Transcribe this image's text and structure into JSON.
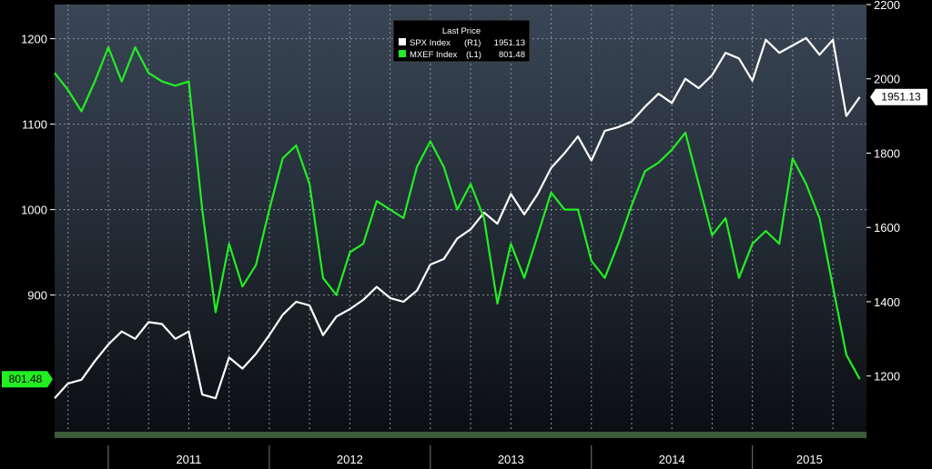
{
  "chart_data": {
    "type": "line",
    "title": "",
    "legend": {
      "title": "Last Price",
      "placement": "top-center",
      "entries": [
        {
          "name": "SPX Index",
          "axis": "(R1)",
          "value": "1951.13",
          "color": "#ffffff"
        },
        {
          "name": "MXEF Index",
          "axis": "(L1)",
          "value": "801.48",
          "color": "#22ee22"
        }
      ]
    },
    "x_axis": {
      "labels": [
        "2011",
        "2012",
        "2013",
        "2014",
        "2015"
      ],
      "range": [
        "2010-09",
        "2015-09"
      ]
    },
    "y_left": {
      "ticks": [
        "1200",
        "1100",
        "1000",
        "900"
      ],
      "range": [
        740,
        1240
      ],
      "last_value_label": "801.48"
    },
    "y_right": {
      "ticks": [
        "2200",
        "2000",
        "1800",
        "1600",
        "1400",
        "1200"
      ],
      "range": [
        1050,
        2200
      ],
      "last_value_label": "1951.13"
    },
    "grid": true,
    "series": [
      {
        "name": "SPX Index",
        "axis": "right",
        "color": "#ffffff",
        "points": [
          [
            "2010-09",
            1140
          ],
          [
            "2010-10",
            1180
          ],
          [
            "2010-11",
            1190
          ],
          [
            "2010-12",
            1240
          ],
          [
            "2011-01",
            1285
          ],
          [
            "2011-02",
            1320
          ],
          [
            "2011-03",
            1300
          ],
          [
            "2011-04",
            1345
          ],
          [
            "2011-05",
            1340
          ],
          [
            "2011-06",
            1300
          ],
          [
            "2011-07",
            1320
          ],
          [
            "2011-08",
            1150
          ],
          [
            "2011-09",
            1140
          ],
          [
            "2011-10",
            1250
          ],
          [
            "2011-11",
            1220
          ],
          [
            "2011-12",
            1260
          ],
          [
            "2012-01",
            1310
          ],
          [
            "2012-02",
            1365
          ],
          [
            "2012-03",
            1400
          ],
          [
            "2012-04",
            1390
          ],
          [
            "2012-05",
            1310
          ],
          [
            "2012-06",
            1360
          ],
          [
            "2012-07",
            1380
          ],
          [
            "2012-08",
            1405
          ],
          [
            "2012-09",
            1440
          ],
          [
            "2012-10",
            1410
          ],
          [
            "2012-11",
            1400
          ],
          [
            "2012-12",
            1430
          ],
          [
            "2013-01",
            1500
          ],
          [
            "2013-02",
            1515
          ],
          [
            "2013-03",
            1570
          ],
          [
            "2013-04",
            1595
          ],
          [
            "2013-05",
            1640
          ],
          [
            "2013-06",
            1610
          ],
          [
            "2013-07",
            1690
          ],
          [
            "2013-08",
            1635
          ],
          [
            "2013-09",
            1690
          ],
          [
            "2013-10",
            1760
          ],
          [
            "2013-11",
            1800
          ],
          [
            "2013-12",
            1845
          ],
          [
            "2014-01",
            1780
          ],
          [
            "2014-02",
            1860
          ],
          [
            "2014-03",
            1870
          ],
          [
            "2014-04",
            1885
          ],
          [
            "2014-05",
            1925
          ],
          [
            "2014-06",
            1960
          ],
          [
            "2014-07",
            1935
          ],
          [
            "2014-08",
            2000
          ],
          [
            "2014-09",
            1975
          ],
          [
            "2014-10",
            2010
          ],
          [
            "2014-11",
            2070
          ],
          [
            "2014-12",
            2055
          ],
          [
            "2015-01",
            1995
          ],
          [
            "2015-02",
            2105
          ],
          [
            "2015-03",
            2070
          ],
          [
            "2015-04",
            2090
          ],
          [
            "2015-05",
            2110
          ],
          [
            "2015-06",
            2065
          ],
          [
            "2015-07",
            2105
          ],
          [
            "2015-08",
            1900
          ],
          [
            "2015-09",
            1951.13
          ]
        ]
      },
      {
        "name": "MXEF Index",
        "axis": "left",
        "color": "#22ee22",
        "points": [
          [
            "2010-09",
            1160
          ],
          [
            "2010-10",
            1140
          ],
          [
            "2010-11",
            1115
          ],
          [
            "2010-12",
            1150
          ],
          [
            "2011-01",
            1190
          ],
          [
            "2011-02",
            1150
          ],
          [
            "2011-03",
            1190
          ],
          [
            "2011-04",
            1160
          ],
          [
            "2011-05",
            1150
          ],
          [
            "2011-06",
            1145
          ],
          [
            "2011-07",
            1150
          ],
          [
            "2011-08",
            1000
          ],
          [
            "2011-09",
            880
          ],
          [
            "2011-10",
            960
          ],
          [
            "2011-11",
            910
          ],
          [
            "2011-12",
            935
          ],
          [
            "2012-01",
            1000
          ],
          [
            "2012-02",
            1060
          ],
          [
            "2012-03",
            1075
          ],
          [
            "2012-04",
            1030
          ],
          [
            "2012-05",
            920
          ],
          [
            "2012-06",
            900
          ],
          [
            "2012-07",
            950
          ],
          [
            "2012-08",
            960
          ],
          [
            "2012-09",
            1010
          ],
          [
            "2012-10",
            1000
          ],
          [
            "2012-11",
            990
          ],
          [
            "2012-12",
            1050
          ],
          [
            "2013-01",
            1080
          ],
          [
            "2013-02",
            1050
          ],
          [
            "2013-03",
            1000
          ],
          [
            "2013-04",
            1030
          ],
          [
            "2013-05",
            990
          ],
          [
            "2013-06",
            890
          ],
          [
            "2013-07",
            960
          ],
          [
            "2013-08",
            920
          ],
          [
            "2013-09",
            970
          ],
          [
            "2013-10",
            1020
          ],
          [
            "2013-11",
            1000
          ],
          [
            "2013-12",
            1000
          ],
          [
            "2014-01",
            940
          ],
          [
            "2014-02",
            920
          ],
          [
            "2014-03",
            960
          ],
          [
            "2014-04",
            1005
          ],
          [
            "2014-05",
            1045
          ],
          [
            "2014-06",
            1055
          ],
          [
            "2014-07",
            1070
          ],
          [
            "2014-08",
            1090
          ],
          [
            "2014-09",
            1030
          ],
          [
            "2014-10",
            970
          ],
          [
            "2014-11",
            990
          ],
          [
            "2014-12",
            920
          ],
          [
            "2015-01",
            960
          ],
          [
            "2015-02",
            975
          ],
          [
            "2015-03",
            960
          ],
          [
            "2015-04",
            1060
          ],
          [
            "2015-05",
            1030
          ],
          [
            "2015-06",
            990
          ],
          [
            "2015-07",
            910
          ],
          [
            "2015-08",
            830
          ],
          [
            "2015-09",
            801.48
          ]
        ]
      }
    ]
  }
}
